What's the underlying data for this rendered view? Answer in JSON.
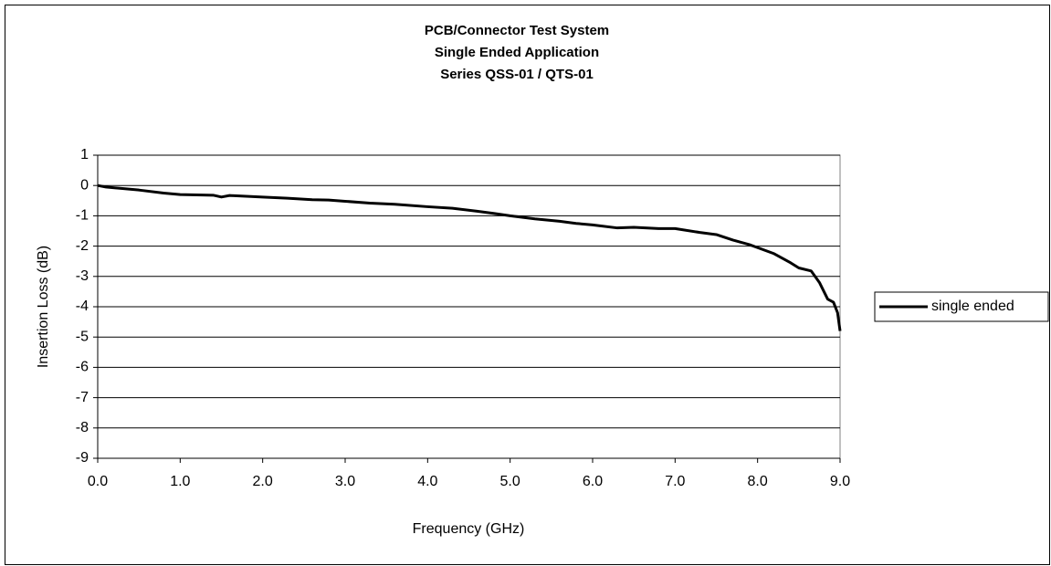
{
  "chart_data": {
    "type": "line",
    "title": [
      "PCB/Connector Test System",
      "Single Ended Application",
      "Series QSS-01 / QTS-01"
    ],
    "x_label": "Frequency (GHz)",
    "y_label": "Insertion Loss (dB)",
    "x": [
      0,
      0.1,
      0.3,
      0.5,
      0.8,
      1.0,
      1.4,
      1.5,
      1.6,
      2.0,
      2.3,
      2.6,
      2.8,
      3.0,
      3.3,
      3.6,
      4.0,
      4.3,
      4.6,
      4.8,
      5.0,
      5.3,
      5.6,
      5.8,
      6.0,
      6.3,
      6.5,
      6.8,
      7.0,
      7.3,
      7.5,
      7.7,
      7.9,
      8.0,
      8.2,
      8.4,
      8.5,
      8.65,
      8.75,
      8.85,
      8.92,
      8.97,
      9.0
    ],
    "series": [
      {
        "name": "single ended",
        "color": "#000000",
        "values": [
          0,
          -0.05,
          -0.1,
          -0.15,
          -0.25,
          -0.3,
          -0.32,
          -0.38,
          -0.33,
          -0.38,
          -0.42,
          -0.47,
          -0.48,
          -0.52,
          -0.58,
          -0.62,
          -0.7,
          -0.75,
          -0.85,
          -0.92,
          -1.0,
          -1.1,
          -1.18,
          -1.25,
          -1.3,
          -1.4,
          -1.38,
          -1.42,
          -1.42,
          -1.55,
          -1.62,
          -1.8,
          -1.95,
          -2.05,
          -2.25,
          -2.55,
          -2.72,
          -2.82,
          -3.2,
          -3.75,
          -3.85,
          -4.2,
          -4.8
        ]
      }
    ],
    "xlim": [
      0,
      9
    ],
    "xticks": [
      {
        "value": 0,
        "label": "0.0"
      },
      {
        "value": 1,
        "label": "1.0"
      },
      {
        "value": 2,
        "label": "2.0"
      },
      {
        "value": 3,
        "label": "3.0"
      },
      {
        "value": 4,
        "label": "4.0"
      },
      {
        "value": 5,
        "label": "5.0"
      },
      {
        "value": 6,
        "label": "6.0"
      },
      {
        "value": 7,
        "label": "7.0"
      },
      {
        "value": 8,
        "label": "8.0"
      },
      {
        "value": 9,
        "label": "9.0"
      }
    ],
    "ylim": [
      -9,
      1
    ],
    "yticks": [
      -9,
      -8,
      -7,
      -6,
      -5,
      -4,
      -3,
      -2,
      -1,
      0,
      1
    ],
    "grid": true,
    "legend": "right"
  }
}
